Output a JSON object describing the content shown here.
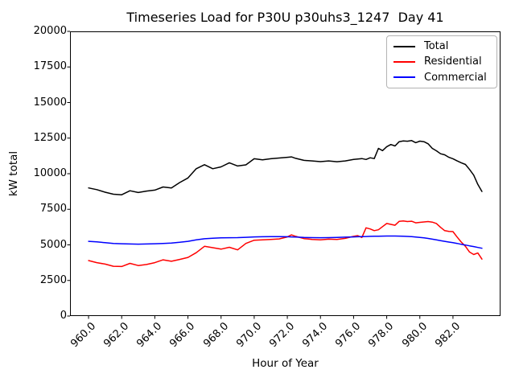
{
  "chart_data": {
    "type": "line",
    "title": "Timeseries Load for P30U p30uhs3_1247  Day 41",
    "xlabel": "Hour of Year",
    "ylabel": "kW total",
    "xlim": [
      958.88,
      984.87
    ],
    "ylim": [
      0,
      20000
    ],
    "grid": false,
    "legend_position": "upper right",
    "x_tick_labels": [
      "960.0",
      "962.0",
      "964.0",
      "966.0",
      "968.0",
      "970.0",
      "972.0",
      "974.0",
      "976.0",
      "978.0",
      "980.0",
      "982.0"
    ],
    "y_tick_labels": [
      "0",
      "2500",
      "5000",
      "7500",
      "10000",
      "12500",
      "15000",
      "17500",
      "20000"
    ],
    "x": [
      960.0,
      960.5,
      961.0,
      961.5,
      962.0,
      962.5,
      963.0,
      963.5,
      964.0,
      964.5,
      965.0,
      965.5,
      966.0,
      966.5,
      967.0,
      967.5,
      968.0,
      968.5,
      969.0,
      969.5,
      970.0,
      970.5,
      971.0,
      971.5,
      972.0,
      972.25,
      972.5,
      973.0,
      973.5,
      974.0,
      974.5,
      975.0,
      975.5,
      976.0,
      976.25,
      976.5,
      976.75,
      977.0,
      977.25,
      977.5,
      977.75,
      978.0,
      978.25,
      978.5,
      978.75,
      979.0,
      979.25,
      979.5,
      979.75,
      980.0,
      980.25,
      980.5,
      980.75,
      981.0,
      981.25,
      981.5,
      981.75,
      982.0,
      982.25,
      982.5,
      982.75,
      983.0,
      983.25,
      983.5,
      983.75
    ],
    "series": [
      {
        "name": "Total",
        "color": "#000000",
        "values": [
          9000,
          8880,
          8700,
          8560,
          8520,
          8800,
          8680,
          8780,
          8850,
          9070,
          9000,
          9380,
          9700,
          10350,
          10630,
          10350,
          10480,
          10770,
          10540,
          10620,
          11050,
          10980,
          11050,
          11100,
          11150,
          11180,
          11080,
          10940,
          10900,
          10850,
          10900,
          10840,
          10900,
          11000,
          11030,
          11060,
          11000,
          11120,
          11060,
          11780,
          11620,
          11900,
          12050,
          11950,
          12250,
          12300,
          12280,
          12330,
          12180,
          12290,
          12250,
          12100,
          11780,
          11610,
          11400,
          11330,
          11150,
          11050,
          10900,
          10770,
          10650,
          10300,
          9900,
          9250,
          8750
        ]
      },
      {
        "name": "Residential",
        "color": "#ff0000",
        "values": [
          3900,
          3750,
          3650,
          3500,
          3480,
          3700,
          3550,
          3620,
          3750,
          3950,
          3850,
          3980,
          4120,
          4450,
          4900,
          4800,
          4700,
          4830,
          4650,
          5100,
          5330,
          5350,
          5380,
          5420,
          5560,
          5700,
          5600,
          5440,
          5380,
          5350,
          5400,
          5380,
          5460,
          5600,
          5650,
          5520,
          6200,
          6120,
          6000,
          6060,
          6280,
          6500,
          6440,
          6380,
          6650,
          6680,
          6640,
          6660,
          6550,
          6580,
          6610,
          6640,
          6600,
          6500,
          6230,
          6000,
          5950,
          5930,
          5550,
          5200,
          4900,
          4500,
          4320,
          4430,
          4000
        ]
      },
      {
        "name": "Commercial",
        "color": "#0000ff",
        "values": [
          5250,
          5210,
          5150,
          5100,
          5080,
          5060,
          5050,
          5060,
          5080,
          5100,
          5130,
          5180,
          5250,
          5350,
          5430,
          5470,
          5490,
          5500,
          5510,
          5530,
          5560,
          5570,
          5580,
          5580,
          5570,
          5560,
          5550,
          5520,
          5510,
          5500,
          5510,
          5520,
          5540,
          5560,
          5570,
          5580,
          5590,
          5600,
          5605,
          5610,
          5615,
          5620,
          5620,
          5620,
          5615,
          5610,
          5595,
          5580,
          5550,
          5520,
          5490,
          5450,
          5400,
          5350,
          5300,
          5250,
          5200,
          5150,
          5100,
          5040,
          4990,
          4930,
          4880,
          4820,
          4760
        ]
      }
    ]
  }
}
